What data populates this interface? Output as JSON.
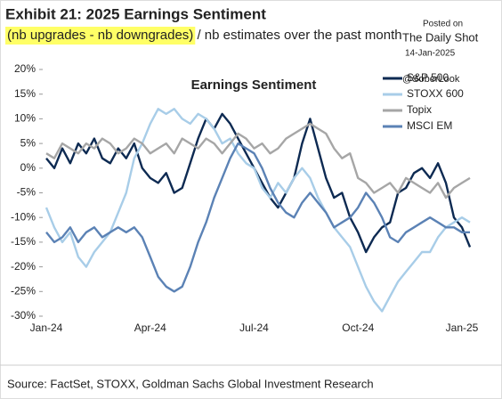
{
  "chart_data": {
    "type": "line",
    "title": "Exhibit 21: 2025 Earnings Sentiment",
    "subtitle_highlight": "(nb upgrades - nb downgrades)",
    "subtitle": " / nb estimates over the past month",
    "inner_title": "Earnings Sentiment",
    "source": "Source: FactSet, STOXX, Goldman Sachs Global Investment Research",
    "watermark": [
      "Posted on",
      "The Daily Shot",
      "14-Jan-2025",
      "@SoberLook"
    ],
    "categories": [
      "Jan-24",
      null,
      null,
      null,
      null,
      null,
      null,
      null,
      null,
      null,
      null,
      null,
      null,
      "Apr-24",
      null,
      null,
      null,
      null,
      null,
      null,
      null,
      null,
      null,
      null,
      null,
      null,
      "Jul-24",
      null,
      null,
      null,
      null,
      null,
      null,
      null,
      null,
      null,
      null,
      null,
      null,
      "Oct-24",
      null,
      null,
      null,
      null,
      null,
      null,
      null,
      null,
      null,
      null,
      null,
      null,
      "Jan-25",
      null
    ],
    "ylim": [
      -30,
      20
    ],
    "yticks": [
      {
        "value": -30,
        "label": "-30%"
      },
      {
        "value": -25,
        "label": "-25%"
      },
      {
        "value": -20,
        "label": "-20%"
      },
      {
        "value": -15,
        "label": "-15%"
      },
      {
        "value": -10,
        "label": "-10%"
      },
      {
        "value": -5,
        "label": "-5%"
      },
      {
        "value": 0,
        "label": "0%"
      },
      {
        "value": 5,
        "label": "5%"
      },
      {
        "value": 10,
        "label": "10%"
      },
      {
        "value": 15,
        "label": "15%"
      },
      {
        "value": 20,
        "label": "20%"
      }
    ],
    "legend": "top-right",
    "series": [
      {
        "name": "S&P 500",
        "color": "#0d2a52",
        "values": [
          2,
          0,
          4,
          1,
          5,
          3,
          6,
          2,
          1,
          4,
          2,
          5,
          0,
          -2,
          -3,
          -1,
          -5,
          -4,
          1,
          6,
          10,
          8,
          11,
          9,
          6,
          3,
          0,
          -3,
          -6,
          -8,
          -5,
          -2,
          5,
          10,
          4,
          -2,
          -6,
          -5,
          -10,
          -13,
          -17,
          -14,
          -12,
          -11,
          -5,
          -4,
          -1,
          0,
          -2,
          1,
          -3,
          -10,
          -12,
          -16
        ]
      },
      {
        "name": "STOXX 600",
        "color": "#a8cde8",
        "values": [
          -8,
          -12,
          -15,
          -13,
          -18,
          -20,
          -17,
          -15,
          -13,
          -9,
          -5,
          2,
          5,
          9,
          12,
          11,
          12,
          10,
          9,
          11,
          10,
          8,
          5,
          6,
          3,
          1,
          0,
          -4,
          -6,
          -3,
          -5,
          -2,
          0,
          -2,
          -6,
          -9,
          -12,
          -14,
          -16,
          -20,
          -24,
          -27,
          -29,
          -26,
          -23,
          -21,
          -19,
          -17,
          -17,
          -14,
          -12,
          -11,
          -10,
          -11
        ]
      },
      {
        "name": "Topix",
        "color": "#a6a6a6",
        "values": [
          3,
          2,
          5,
          4,
          3,
          5,
          4,
          6,
          5,
          3,
          4,
          6,
          5,
          3,
          4,
          5,
          3,
          6,
          5,
          4,
          6,
          5,
          3,
          5,
          7,
          6,
          4,
          5,
          3,
          4,
          6,
          7,
          8,
          9,
          8,
          7,
          4,
          2,
          3,
          -2,
          -3,
          -5,
          -4,
          -3,
          -5,
          -2,
          -3,
          -4,
          -5,
          -3,
          -6,
          -4,
          -3,
          -2
        ]
      },
      {
        "name": "MSCI EM",
        "color": "#5b82b5",
        "values": [
          -13,
          -15,
          -14,
          -12,
          -15,
          -13,
          -12,
          -14,
          -13,
          -12,
          -13,
          -12,
          -14,
          -18,
          -22,
          -24,
          -25,
          -24,
          -20,
          -15,
          -11,
          -6,
          -2,
          2,
          5,
          4,
          3,
          0,
          -4,
          -7,
          -9,
          -10,
          -7,
          -5,
          -7,
          -9,
          -12,
          -11,
          -10,
          -8,
          -5,
          -7,
          -10,
          -14,
          -15,
          -13,
          -12,
          -11,
          -10,
          -11,
          -12,
          -12,
          -13,
          -13
        ]
      }
    ]
  }
}
